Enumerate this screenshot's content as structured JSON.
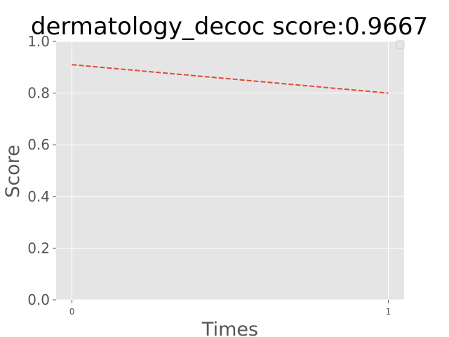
{
  "chart_data": {
    "type": "line",
    "title": "dermatology_decoc score:0.9667",
    "xlabel": "Times",
    "ylabel": "Score",
    "x": [
      0,
      1
    ],
    "x_ticks": [
      "0",
      "1"
    ],
    "y_ticks": [
      "0.0",
      "0.2",
      "0.4",
      "0.6",
      "0.8",
      "1.0"
    ],
    "xlim": [
      -0.05,
      1.05
    ],
    "ylim": [
      0.0,
      1.0
    ],
    "grid": true,
    "legend": "top-right (empty)",
    "series": [
      {
        "values": [
          0.91,
          0.8
        ],
        "color": "#e24a33",
        "line_style": "dashed"
      }
    ]
  }
}
